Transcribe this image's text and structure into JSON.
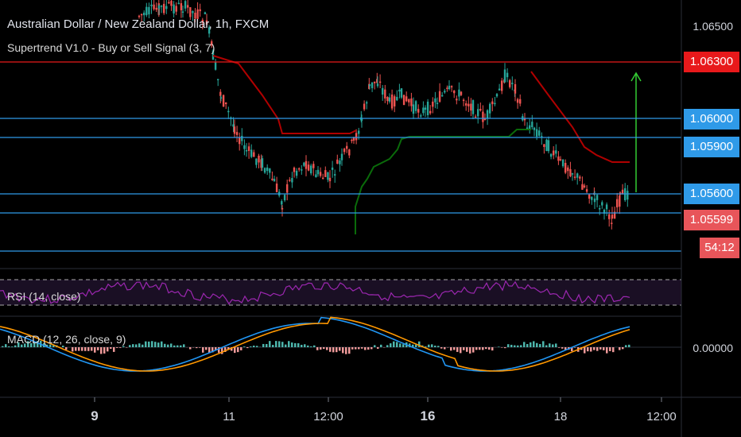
{
  "header": {
    "title": "Australian Dollar / New Zealand Dollar, 1h, FXCM",
    "indicator": "Supertrend V1.0 - Buy or Sell Signal (3, 7)"
  },
  "price_axis": {
    "ticks": [
      "1.06500",
      "0.00000"
    ],
    "badges": [
      {
        "label": "1.06300",
        "color": "#e8191b"
      },
      {
        "label": "1.06000",
        "color": "#2f9ae8"
      },
      {
        "label": "1.05900",
        "color": "#2f9ae8"
      },
      {
        "label": "1.05600",
        "color": "#2f9ae8"
      },
      {
        "label": "1.05599",
        "color": "#e8555a"
      },
      {
        "label": "54:12",
        "color": "#e8555a"
      }
    ]
  },
  "time_axis": {
    "ticks": [
      {
        "label": "9",
        "bold": true
      },
      {
        "label": "11",
        "bold": false
      },
      {
        "label": "12:00",
        "bold": false
      },
      {
        "label": "16",
        "bold": true
      },
      {
        "label": "18",
        "bold": false
      },
      {
        "label": "12:00",
        "bold": false
      }
    ]
  },
  "panes": {
    "rsi_label": "RSI (14, close)",
    "macd_label": "MACD (12, 26, close, 9)"
  },
  "colors": {
    "up": "#26a69a",
    "down": "#ef5350",
    "supertrend_down": "#b00000",
    "supertrend_up": "#0a6b0a",
    "horizontal_lines": "#2f9ae8",
    "resistance": "#e8191b",
    "rsi": "#9c27b0",
    "macd": "#2196f3",
    "signal": "#ff9800",
    "arrow": "#33cc33"
  }
}
